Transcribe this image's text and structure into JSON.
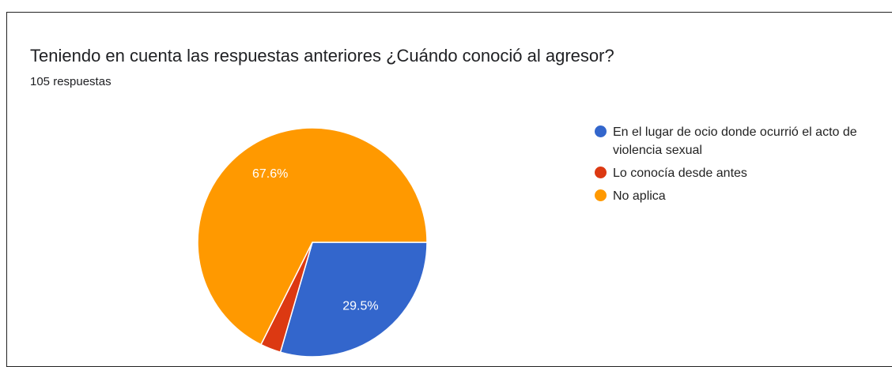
{
  "chart_data": {
    "type": "pie",
    "title": "Teniendo en cuenta las respuestas anteriores ¿Cuándo conoció al agresor?",
    "subtitle": "105 respuestas",
    "categories": [
      "En el lugar de ocio donde ocurrió el acto de violencia sexual",
      "Lo conocía desde antes",
      "No aplica"
    ],
    "values": [
      29.5,
      2.9,
      67.6
    ],
    "value_labels": [
      "29.5%",
      null,
      "67.6%"
    ],
    "colors": [
      "#3366cc",
      "#dc3912",
      "#ff9900"
    ],
    "legend": "right"
  }
}
